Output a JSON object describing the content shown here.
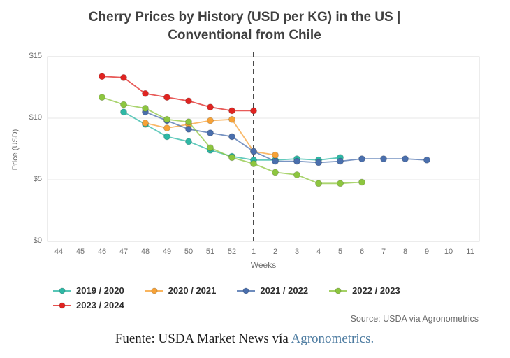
{
  "title": {
    "line1": "Cherry Prices by History (USD per KG) in the US |",
    "line2": "Conventional from Chile"
  },
  "chart_data": {
    "type": "line",
    "title": "Cherry Prices by History (USD per KG) in the US | Conventional from Chile",
    "xlabel": "Weeks",
    "ylabel": "Price (USD)",
    "ylim": [
      0,
      15
    ],
    "yticks": [
      {
        "label": "$15",
        "value": 15
      },
      {
        "label": "$10",
        "value": 10
      },
      {
        "label": "$5",
        "value": 5
      },
      {
        "label": "$0",
        "value": 0
      }
    ],
    "grid": true,
    "legend_position": "bottom-left",
    "categories": [
      "44",
      "45",
      "46",
      "47",
      "48",
      "49",
      "50",
      "51",
      "52",
      "1",
      "2",
      "3",
      "4",
      "5",
      "6",
      "7",
      "8",
      "9",
      "10",
      "11"
    ],
    "dashed_line_at_week": "1",
    "dashed_line_color": "#4a4a4a",
    "series": [
      {
        "name": "2019 / 2020",
        "color": "#2eb8a5",
        "values": [
          null,
          null,
          null,
          10.5,
          9.5,
          8.5,
          8.1,
          7.4,
          6.9,
          6.6,
          6.6,
          6.7,
          6.6,
          6.8,
          null,
          null,
          null,
          null,
          null,
          null
        ]
      },
      {
        "name": "2020 / 2021",
        "color": "#f7a237",
        "values": [
          null,
          null,
          null,
          null,
          9.6,
          9.2,
          9.5,
          9.8,
          9.9,
          7.3,
          7.0,
          null,
          null,
          null,
          null,
          null,
          null,
          null,
          null,
          null
        ]
      },
      {
        "name": "2021 / 2022",
        "color": "#4a6fad",
        "values": [
          null,
          null,
          null,
          null,
          10.5,
          9.8,
          9.1,
          8.8,
          8.5,
          7.3,
          6.5,
          6.5,
          6.4,
          6.5,
          6.7,
          6.7,
          6.7,
          6.6,
          null,
          null
        ]
      },
      {
        "name": "2022 / 2023",
        "color": "#8dc63f",
        "values": [
          null,
          null,
          11.7,
          11.1,
          10.8,
          9.9,
          9.7,
          7.6,
          6.8,
          6.3,
          5.6,
          5.4,
          4.7,
          4.7,
          4.8,
          null,
          null,
          null,
          null,
          null
        ]
      },
      {
        "name": "2023 / 2024",
        "color": "#e02421",
        "values": [
          null,
          null,
          13.4,
          13.3,
          12.0,
          11.7,
          11.4,
          10.9,
          10.6,
          10.6,
          null,
          null,
          null,
          null,
          null,
          null,
          null,
          null,
          null,
          null
        ]
      }
    ],
    "source_note": "Source: USDA via Agronometrics"
  },
  "caption": {
    "prefix": "Fuente: USDA Market News vía ",
    "link": "Agronometrics."
  }
}
